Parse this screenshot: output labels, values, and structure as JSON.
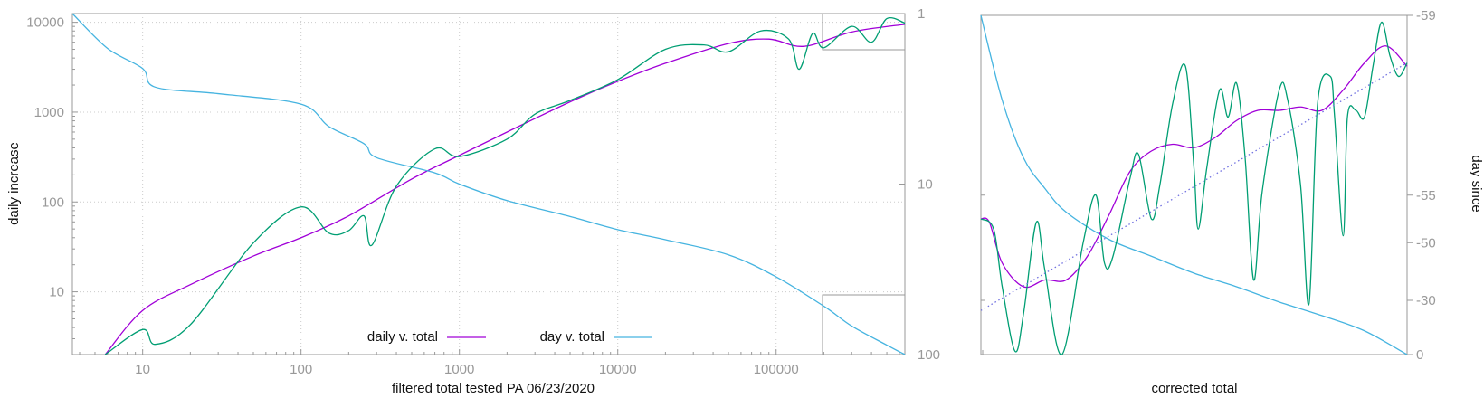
{
  "colors": {
    "daily_total": "#a000d8",
    "day_total": "#46b4e0",
    "raw_daily": "#009e73",
    "reference": "#7070e0",
    "frame": "#999999",
    "grid": "#cccccc"
  },
  "chart_data": [
    {
      "type": "line",
      "xlabel": "filtered total tested PA 06/23/2020",
      "ylabel": "daily increase",
      "y2label": "",
      "xscale": "log",
      "yscale": "log",
      "y2scale": "log-reversed",
      "xlim": [
        3.6,
        650000
      ],
      "ylim": [
        2,
        12500
      ],
      "y2lim": [
        1,
        100
      ],
      "grid": true,
      "legend": "bottom-center",
      "x_ticks": [
        "10",
        "100",
        "1000",
        "10000",
        "100000"
      ],
      "y_ticks": [
        "10",
        "100",
        "1000",
        "10000"
      ],
      "y2_ticks": [
        "1",
        "10",
        "100"
      ],
      "series": [
        {
          "name": "daily v. total",
          "axis": "y",
          "points": [
            [
              5.8,
              2
            ],
            [
              10,
              6.2
            ],
            [
              20,
              12
            ],
            [
              50,
              25
            ],
            [
              100,
              40
            ],
            [
              200,
              70
            ],
            [
              500,
              180
            ],
            [
              1000,
              330
            ],
            [
              2000,
              600
            ],
            [
              5000,
              1300
            ],
            [
              10000,
              2200
            ],
            [
              20000,
              3500
            ],
            [
              50000,
              5800
            ],
            [
              90000,
              6500
            ],
            [
              150000,
              5400
            ],
            [
              300000,
              7800
            ],
            [
              650000,
              9500
            ]
          ]
        },
        {
          "name": "day v. total",
          "axis": "y2",
          "points": [
            [
              3.6,
              1
            ],
            [
              6,
              1.6
            ],
            [
              10,
              2.1
            ],
            [
              12,
              2.7
            ],
            [
              30,
              2.95
            ],
            [
              100,
              3.4
            ],
            [
              150,
              4.6
            ],
            [
              250,
              5.8
            ],
            [
              300,
              7
            ],
            [
              700,
              8.6
            ],
            [
              1000,
              10
            ],
            [
              2000,
              12.5
            ],
            [
              5000,
              15.5
            ],
            [
              10000,
              18.5
            ],
            [
              20000,
              21.2
            ],
            [
              50000,
              26
            ],
            [
              100000,
              35
            ],
            [
              200000,
              52
            ],
            [
              300000,
              68
            ],
            [
              500000,
              88
            ],
            [
              650000,
              100
            ]
          ]
        },
        {
          "axis": "y",
          "points": [
            [
              5.8,
              2
            ],
            [
              10,
              3.8
            ],
            [
              12,
              2.6
            ],
            [
              20,
              4.3
            ],
            [
              50,
              35
            ],
            [
              100,
              88
            ],
            [
              150,
              45
            ],
            [
              200,
              48
            ],
            [
              250,
              70
            ],
            [
              280,
              33
            ],
            [
              400,
              150
            ],
            [
              700,
              390
            ],
            [
              1000,
              320
            ],
            [
              2000,
              500
            ],
            [
              3000,
              950
            ],
            [
              5000,
              1350
            ],
            [
              10000,
              2300
            ],
            [
              20000,
              5000
            ],
            [
              35000,
              5600
            ],
            [
              50000,
              4700
            ],
            [
              80000,
              8000
            ],
            [
              120000,
              6500
            ],
            [
              140000,
              3000
            ],
            [
              170000,
              7500
            ],
            [
              200000,
              5200
            ],
            [
              300000,
              9000
            ],
            [
              400000,
              6000
            ],
            [
              500000,
              11000
            ],
            [
              650000,
              9800
            ]
          ]
        }
      ]
    },
    {
      "type": "line",
      "xlabel": "corrected total",
      "ylabel": "",
      "y2label": "day since",
      "legend": "none",
      "grid": false,
      "y2_ticks": [
        "-59",
        "-55",
        "-50",
        "-30",
        "0"
      ],
      "series": [
        {
          "axis": "right",
          "points": [
            [
              0,
              1.0
            ],
            [
              0.05,
              0.75
            ],
            [
              0.1,
              0.58
            ],
            [
              0.15,
              0.49
            ],
            [
              0.2,
              0.42
            ],
            [
              0.3,
              0.34
            ],
            [
              0.4,
              0.29
            ],
            [
              0.5,
              0.24
            ],
            [
              0.6,
              0.2
            ],
            [
              0.7,
              0.155
            ],
            [
              0.8,
              0.115
            ],
            [
              0.9,
              0.07
            ],
            [
              1.0,
              0.0
            ]
          ]
        },
        {
          "axis": "left",
          "points": [
            [
              0,
              0.4
            ],
            [
              0.02,
              0.39
            ],
            [
              0.05,
              0.27
            ],
            [
              0.1,
              0.2
            ],
            [
              0.15,
              0.22
            ],
            [
              0.2,
              0.22
            ],
            [
              0.25,
              0.29
            ],
            [
              0.3,
              0.41
            ],
            [
              0.35,
              0.54
            ],
            [
              0.4,
              0.6
            ],
            [
              0.45,
              0.62
            ],
            [
              0.5,
              0.61
            ],
            [
              0.55,
              0.64
            ],
            [
              0.6,
              0.69
            ],
            [
              0.65,
              0.72
            ],
            [
              0.7,
              0.72
            ],
            [
              0.75,
              0.73
            ],
            [
              0.8,
              0.72
            ],
            [
              0.85,
              0.78
            ],
            [
              0.9,
              0.86
            ],
            [
              0.95,
              0.91
            ],
            [
              1.0,
              0.85
            ]
          ]
        },
        {
          "axis": "left",
          "points": [
            [
              0,
              0.4
            ],
            [
              0.03,
              0.37
            ],
            [
              0.05,
              0.2
            ],
            [
              0.08,
              0.01
            ],
            [
              0.1,
              0.12
            ],
            [
              0.13,
              0.39
            ],
            [
              0.15,
              0.25
            ],
            [
              0.19,
              0.0
            ],
            [
              0.24,
              0.33
            ],
            [
              0.27,
              0.47
            ],
            [
              0.29,
              0.27
            ],
            [
              0.31,
              0.29
            ],
            [
              0.35,
              0.52
            ],
            [
              0.37,
              0.59
            ],
            [
              0.4,
              0.4
            ],
            [
              0.42,
              0.5
            ],
            [
              0.45,
              0.74
            ],
            [
              0.48,
              0.85
            ],
            [
              0.5,
              0.55
            ],
            [
              0.51,
              0.37
            ],
            [
              0.53,
              0.55
            ],
            [
              0.56,
              0.78
            ],
            [
              0.58,
              0.7
            ],
            [
              0.6,
              0.8
            ],
            [
              0.62,
              0.58
            ],
            [
              0.64,
              0.22
            ],
            [
              0.66,
              0.48
            ],
            [
              0.7,
              0.78
            ],
            [
              0.72,
              0.75
            ],
            [
              0.75,
              0.5
            ],
            [
              0.77,
              0.15
            ],
            [
              0.79,
              0.74
            ],
            [
              0.82,
              0.82
            ],
            [
              0.83,
              0.7
            ],
            [
              0.85,
              0.35
            ],
            [
              0.86,
              0.7
            ],
            [
              0.88,
              0.72
            ],
            [
              0.9,
              0.7
            ],
            [
              0.92,
              0.85
            ],
            [
              0.94,
              0.98
            ],
            [
              0.96,
              0.88
            ],
            [
              0.98,
              0.82
            ],
            [
              1.0,
              0.86
            ]
          ]
        },
        {
          "axis": "left",
          "style": "dotted",
          "points": [
            [
              0,
              0.13
            ],
            [
              1.0,
              0.86
            ]
          ]
        }
      ]
    }
  ]
}
